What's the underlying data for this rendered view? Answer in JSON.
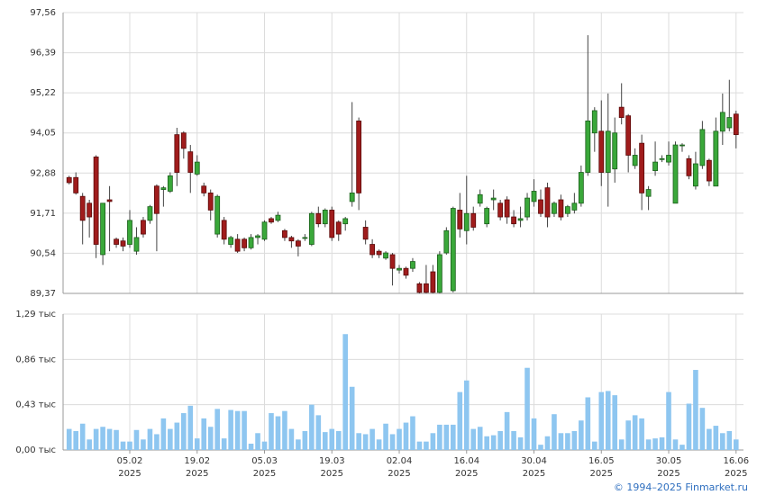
{
  "chart_data": [
    {
      "type": "candlestick",
      "ylim": [
        89.37,
        97.56
      ],
      "yticks": [
        {
          "value": 89.37,
          "label": "89,37"
        },
        {
          "value": 90.54,
          "label": "90,54"
        },
        {
          "value": 91.71,
          "label": "91,71"
        },
        {
          "value": 92.88,
          "label": "92,88"
        },
        {
          "value": 94.05,
          "label": "94,05"
        },
        {
          "value": 95.22,
          "label": "95,22"
        },
        {
          "value": 96.39,
          "label": "96,39"
        },
        {
          "value": 97.56,
          "label": "97,56"
        }
      ],
      "up_color": "#3aa83a",
      "down_color": "#a01c1c",
      "grid": true,
      "open": [
        92.75,
        92.75,
        92.2,
        92.0,
        93.35,
        90.5,
        92.1,
        90.95,
        90.9,
        90.8,
        90.6,
        91.5,
        91.5,
        92.5,
        92.4,
        92.35,
        94.0,
        94.05,
        93.5,
        92.85,
        92.5,
        92.3,
        91.1,
        91.5,
        90.8,
        90.95,
        90.95,
        90.7,
        91.0,
        90.95,
        91.55,
        91.5,
        91.2,
        91.0,
        90.9,
        91.0,
        90.8,
        91.7,
        91.4,
        91.8,
        91.45,
        91.4,
        92.05,
        94.4,
        91.3,
        90.8,
        90.6,
        90.4,
        90.5,
        90.05,
        90.1,
        90.1,
        89.65,
        89.65,
        90.0,
        89.4,
        90.55,
        89.45,
        91.8,
        91.2,
        91.7,
        92.0,
        91.4,
        92.1,
        92.0,
        92.1,
        91.6,
        91.5,
        91.6,
        92.05,
        92.1,
        92.45,
        91.7,
        92.1,
        91.7,
        91.8,
        92.0,
        92.9,
        94.05,
        94.1,
        92.9,
        93.0,
        94.8,
        94.55,
        93.1,
        93.75,
        92.2,
        92.95,
        93.3,
        93.2,
        92.0,
        93.7,
        93.3,
        92.5,
        93.1,
        93.25,
        92.5,
        94.1,
        94.2,
        94.6
      ],
      "high": [
        92.8,
        92.9,
        92.3,
        92.1,
        93.4,
        92.0,
        92.5,
        91.0,
        91.0,
        91.8,
        91.3,
        91.6,
        91.95,
        92.55,
        92.5,
        92.9,
        94.2,
        94.1,
        93.7,
        93.4,
        92.6,
        92.4,
        92.25,
        91.6,
        91.05,
        91.1,
        91.0,
        91.1,
        91.1,
        91.5,
        91.6,
        91.75,
        91.25,
        91.05,
        90.95,
        91.1,
        91.75,
        91.9,
        91.85,
        91.9,
        91.5,
        91.6,
        94.95,
        94.5,
        91.5,
        90.95,
        90.65,
        90.6,
        90.55,
        90.2,
        90.15,
        90.4,
        89.7,
        90.2,
        90.2,
        90.6,
        91.3,
        91.9,
        92.3,
        92.8,
        91.9,
        92.4,
        91.9,
        92.4,
        92.1,
        92.2,
        91.8,
        91.9,
        92.3,
        92.7,
        92.4,
        92.6,
        92.05,
        92.25,
        91.95,
        92.3,
        93.1,
        96.9,
        94.8,
        95.0,
        95.2,
        94.5,
        95.5,
        94.6,
        93.6,
        94.0,
        92.5,
        93.8,
        93.4,
        93.8,
        93.8,
        93.75,
        93.4,
        93.5,
        94.4,
        93.3,
        94.5,
        95.2,
        95.6,
        94.7
      ],
      "low": [
        92.55,
        92.25,
        90.8,
        91.0,
        90.4,
        90.2,
        90.6,
        90.7,
        90.6,
        90.7,
        90.5,
        91.0,
        91.4,
        90.6,
        91.9,
        92.3,
        92.5,
        93.3,
        92.3,
        92.8,
        92.2,
        91.5,
        91.0,
        90.8,
        90.7,
        90.55,
        90.6,
        90.65,
        90.8,
        90.9,
        91.4,
        91.45,
        90.9,
        90.7,
        90.45,
        90.9,
        90.75,
        91.3,
        91.3,
        90.9,
        90.9,
        91.2,
        91.9,
        91.8,
        90.8,
        90.4,
        90.4,
        90.35,
        89.6,
        89.95,
        89.8,
        90.0,
        89.37,
        89.37,
        89.37,
        89.37,
        90.5,
        89.4,
        91.0,
        90.8,
        91.2,
        91.9,
        91.3,
        91.8,
        91.5,
        91.4,
        91.3,
        91.3,
        91.5,
        91.9,
        91.6,
        91.3,
        91.6,
        91.5,
        91.6,
        91.7,
        91.9,
        92.8,
        93.5,
        92.5,
        91.9,
        92.6,
        94.3,
        92.9,
        93.0,
        91.8,
        91.8,
        92.8,
        93.2,
        93.1,
        92.0,
        93.5,
        92.7,
        92.4,
        93.0,
        92.5,
        92.5,
        93.7,
        94.1,
        93.6
      ],
      "close": [
        92.6,
        92.3,
        91.5,
        91.6,
        90.8,
        92.0,
        92.05,
        90.8,
        90.75,
        91.5,
        91.0,
        91.1,
        91.9,
        91.7,
        92.45,
        92.8,
        92.9,
        93.6,
        92.9,
        93.2,
        92.3,
        91.8,
        92.2,
        90.95,
        91.0,
        90.6,
        90.7,
        91.0,
        91.05,
        91.45,
        91.45,
        91.65,
        91.0,
        90.9,
        90.75,
        91.0,
        91.7,
        91.4,
        91.8,
        91.0,
        91.1,
        91.55,
        92.3,
        92.3,
        90.95,
        90.5,
        90.5,
        90.55,
        90.1,
        90.1,
        89.9,
        90.3,
        89.4,
        89.4,
        89.4,
        90.5,
        91.2,
        91.85,
        91.25,
        91.7,
        91.3,
        92.25,
        91.85,
        92.15,
        91.6,
        91.6,
        91.4,
        91.55,
        92.15,
        92.35,
        91.7,
        91.6,
        92.0,
        91.6,
        91.9,
        92.0,
        92.9,
        94.4,
        94.7,
        92.9,
        94.1,
        94.05,
        94.5,
        93.4,
        93.4,
        92.3,
        92.4,
        93.2,
        93.3,
        93.4,
        93.7,
        93.7,
        92.8,
        93.15,
        94.15,
        92.65,
        94.1,
        94.65,
        94.5,
        94.0
      ]
    },
    {
      "type": "bar",
      "color": "#8ec6f0",
      "grid": true,
      "ylim": [
        0,
        1.29
      ],
      "yticks": [
        {
          "value": 0,
          "label": "0,00 тыс"
        },
        {
          "value": 0.43,
          "label": "0,43 тыс"
        },
        {
          "value": 0.86,
          "label": "0,86 тыс"
        },
        {
          "value": 1.29,
          "label": "1,29 тыс"
        }
      ],
      "categories": [
        null,
        null,
        null,
        null,
        null,
        null,
        null,
        null,
        null,
        "05.02\n2025",
        null,
        null,
        null,
        null,
        null,
        null,
        null,
        null,
        null,
        "19.02\n2025",
        null,
        null,
        null,
        null,
        null,
        null,
        null,
        null,
        null,
        "05.03\n2025",
        null,
        null,
        null,
        null,
        null,
        null,
        null,
        null,
        null,
        "19.03\n2025",
        null,
        null,
        null,
        null,
        null,
        null,
        null,
        null,
        null,
        "02.04\n2025",
        null,
        null,
        null,
        null,
        null,
        null,
        null,
        null,
        null,
        "16.04\n2025",
        null,
        null,
        null,
        null,
        null,
        null,
        null,
        null,
        null,
        "30.04\n2025",
        null,
        null,
        null,
        null,
        null,
        null,
        null,
        null,
        null,
        "16.05\n2025",
        null,
        null,
        null,
        null,
        null,
        null,
        null,
        null,
        null,
        "30.05\n2025",
        null,
        null,
        null,
        null,
        null,
        null,
        null,
        null,
        null,
        "16.06\n2025"
      ],
      "values": [
        0.2,
        0.18,
        0.25,
        0.1,
        0.2,
        0.22,
        0.2,
        0.19,
        0.08,
        0.08,
        0.19,
        0.1,
        0.2,
        0.15,
        0.3,
        0.2,
        0.26,
        0.35,
        0.42,
        0.11,
        0.3,
        0.22,
        0.39,
        0.11,
        0.38,
        0.37,
        0.37,
        0.06,
        0.16,
        0.08,
        0.35,
        0.32,
        0.37,
        0.2,
        0.1,
        0.18,
        0.43,
        0.33,
        0.17,
        0.2,
        0.18,
        1.1,
        0.6,
        0.16,
        0.15,
        0.2,
        0.1,
        0.25,
        0.15,
        0.2,
        0.26,
        0.32,
        0.08,
        0.08,
        0.16,
        0.24,
        0.24,
        0.24,
        0.55,
        0.66,
        0.2,
        0.22,
        0.13,
        0.14,
        0.18,
        0.36,
        0.18,
        0.12,
        0.78,
        0.3,
        0.05,
        0.13,
        0.34,
        0.16,
        0.16,
        0.18,
        0.28,
        0.5,
        0.08,
        0.55,
        0.56,
        0.52,
        0.1,
        0.28,
        0.33,
        0.3,
        0.1,
        0.11,
        0.12,
        0.55,
        0.1,
        0.05,
        0.44,
        0.76,
        0.4,
        0.2,
        0.23,
        0.16,
        0.18,
        0.1
      ]
    }
  ],
  "footer": "© 1994–2025 Finmarket.ru"
}
